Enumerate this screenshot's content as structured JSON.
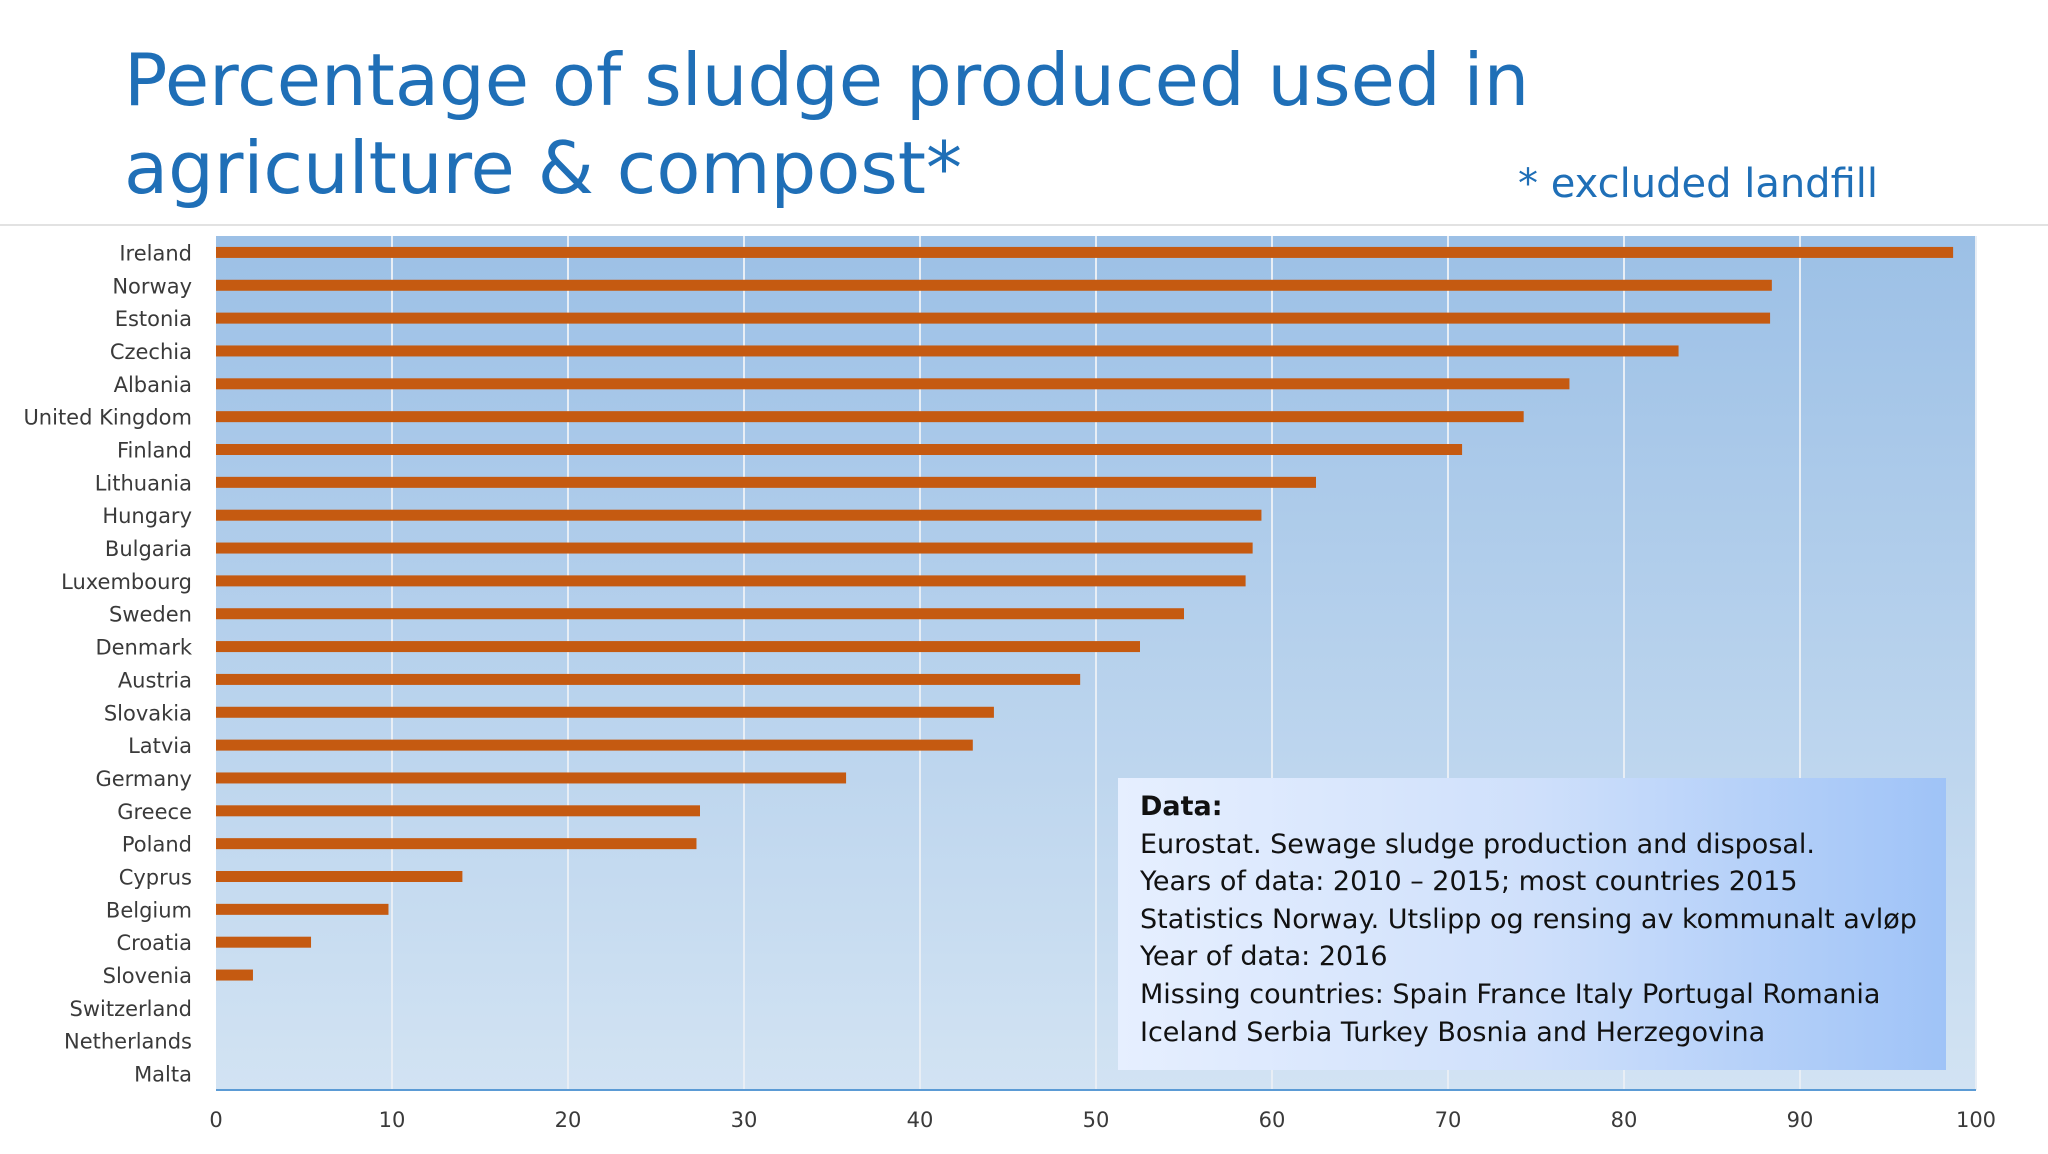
{
  "slide": {
    "title": "Percentage of sludge produced used in agriculture & compost*",
    "note": "* excluded landfill"
  },
  "data_box": {
    "heading": "Data:",
    "lines": [
      "Eurostat. Sewage sludge production and disposal.",
      "Years of data: 2010 – 2015; most countries 2015",
      "Statistics Norway. Utslipp og rensing av kommunalt  avløp",
      "Year of data: 2016",
      "Missing countries: Spain France Italy Portugal Romania",
      "Iceland Serbia Turkey Bosnia and Herzegovina"
    ]
  },
  "colors": {
    "bar": "#c55a11",
    "plot_top": "#9cc0e6",
    "plot_bottom": "#d2e3f3",
    "gridline": "#e8eef5",
    "axis": "#5b9bd5",
    "title": "#1f6fb7"
  },
  "chart_data": {
    "type": "bar",
    "orientation": "horizontal",
    "categories": [
      "Ireland",
      "Norway",
      "Estonia",
      "Czechia",
      "Albania",
      "United Kingdom",
      "Finland",
      "Lithuania",
      "Hungary",
      "Bulgaria",
      "Luxembourg",
      "Sweden",
      "Denmark",
      "Austria",
      "Slovakia",
      "Latvia",
      "Germany",
      "Greece",
      "Poland",
      "Cyprus",
      "Belgium",
      "Croatia",
      "Slovenia",
      "Switzerland",
      "Netherlands",
      "Malta"
    ],
    "values": [
      98.7,
      88.4,
      88.3,
      83.1,
      76.9,
      74.3,
      70.8,
      62.5,
      59.4,
      58.9,
      58.5,
      55.0,
      52.5,
      49.1,
      44.2,
      43.0,
      35.8,
      27.5,
      27.3,
      14.0,
      9.8,
      5.4,
      2.1,
      0,
      0,
      0
    ],
    "xlim": [
      0,
      100
    ],
    "xticks": [
      0,
      10,
      20,
      30,
      40,
      50,
      60,
      70,
      80,
      90,
      100
    ],
    "grid": true,
    "legend": "none"
  }
}
